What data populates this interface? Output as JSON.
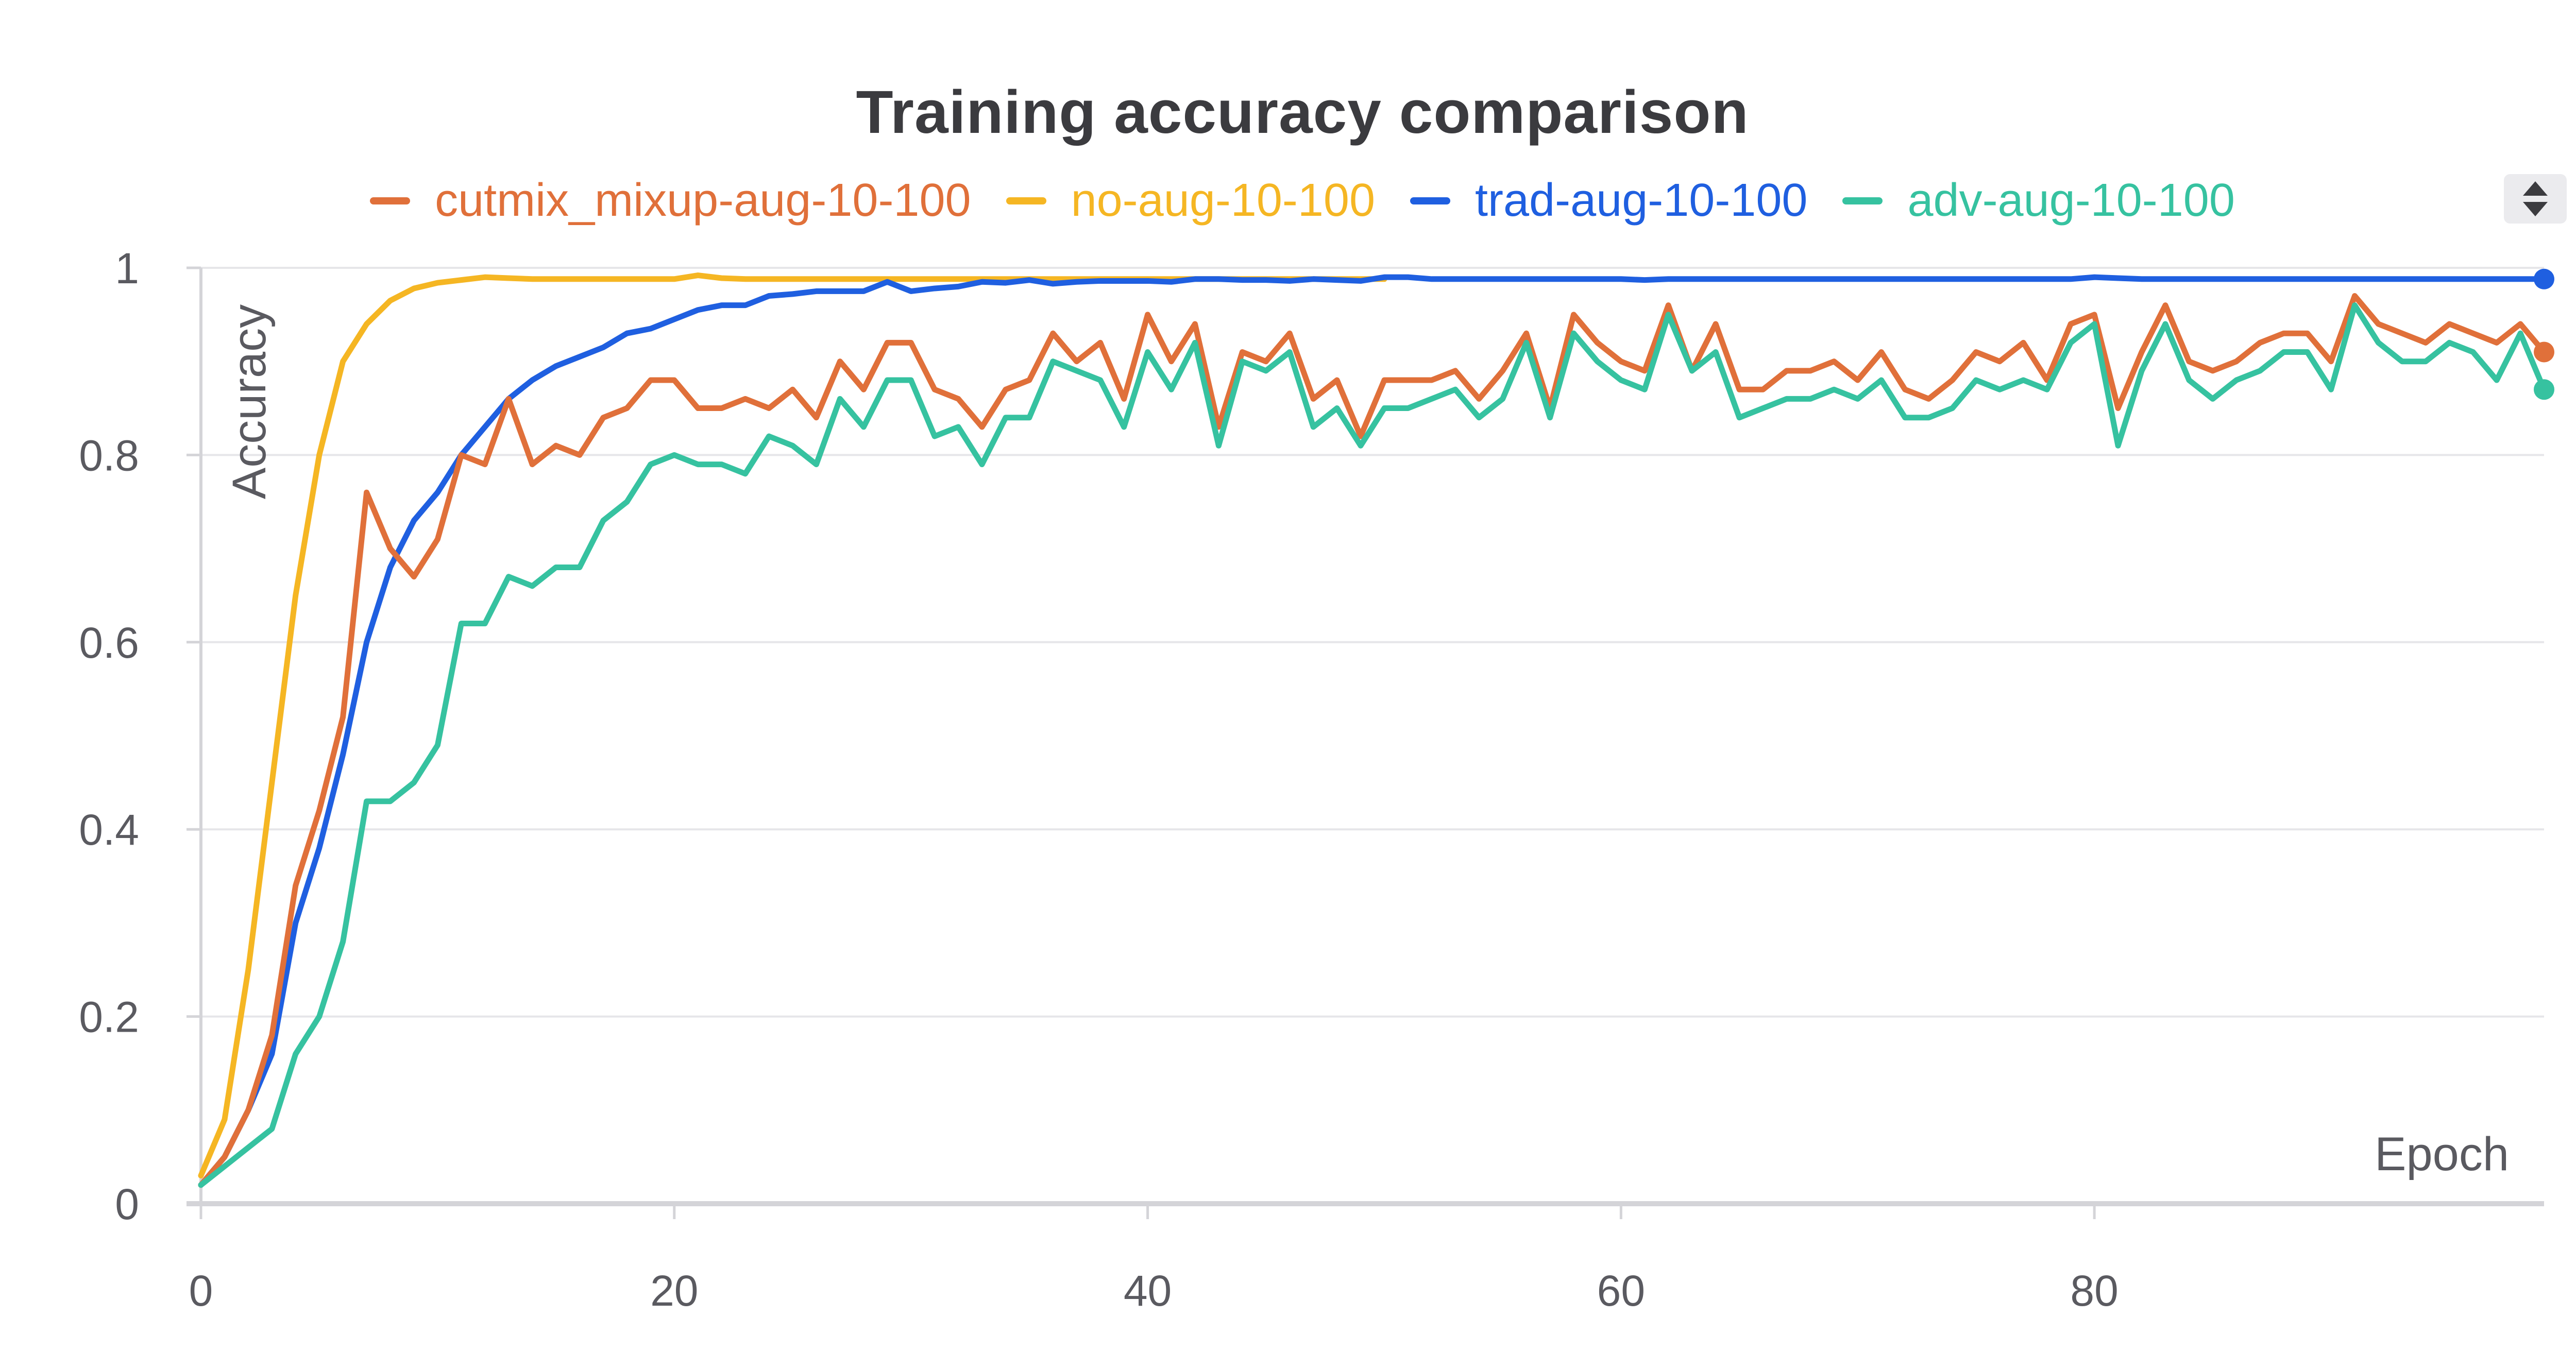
{
  "chart_data": {
    "type": "line",
    "title": "Training accuracy comparison",
    "xlabel": "Epoch",
    "ylabel": "Accuracy",
    "xlim": [
      0,
      99
    ],
    "ylim": [
      0,
      1
    ],
    "x_ticks": [
      0,
      20,
      40,
      60,
      80
    ],
    "y_ticks": [
      0,
      0.2,
      0.4,
      0.6,
      0.8,
      1
    ],
    "y_tick_labels": [
      "0",
      "0.2",
      "0.4",
      "0.6",
      "0.8",
      "1"
    ],
    "grid": "horizontal",
    "legend_position": "top-center",
    "end_markers": true,
    "series": [
      {
        "name": "cutmix_mixup-aug-10-100",
        "color": "#e0703a",
        "values": [
          0.02,
          0.05,
          0.1,
          0.18,
          0.34,
          0.42,
          0.52,
          0.76,
          0.7,
          0.67,
          0.71,
          0.8,
          0.79,
          0.86,
          0.79,
          0.81,
          0.8,
          0.84,
          0.85,
          0.88,
          0.88,
          0.85,
          0.85,
          0.86,
          0.85,
          0.87,
          0.84,
          0.9,
          0.87,
          0.92,
          0.92,
          0.87,
          0.86,
          0.83,
          0.87,
          0.88,
          0.93,
          0.9,
          0.92,
          0.86,
          0.95,
          0.9,
          0.94,
          0.83,
          0.91,
          0.9,
          0.93,
          0.86,
          0.88,
          0.82,
          0.88,
          0.88,
          0.88,
          0.89,
          0.86,
          0.89,
          0.93,
          0.85,
          0.95,
          0.92,
          0.9,
          0.89,
          0.96,
          0.89,
          0.94,
          0.87,
          0.87,
          0.89,
          0.89,
          0.9,
          0.88,
          0.91,
          0.87,
          0.86,
          0.88,
          0.91,
          0.9,
          0.92,
          0.88,
          0.94,
          0.95,
          0.85,
          0.91,
          0.96,
          0.9,
          0.89,
          0.9,
          0.92,
          0.93,
          0.93,
          0.9,
          0.97,
          0.94,
          0.93,
          0.92,
          0.94,
          0.93,
          0.92,
          0.94,
          0.91
        ]
      },
      {
        "name": "no-aug-10-100",
        "color": "#f5b623",
        "values": [
          0.03,
          0.09,
          0.25,
          0.45,
          0.65,
          0.8,
          0.9,
          0.94,
          0.965,
          0.978,
          0.984,
          0.987,
          0.99,
          0.989,
          0.988,
          0.988,
          0.988,
          0.988,
          0.988,
          0.988,
          0.988,
          0.992,
          0.989,
          0.988,
          0.988,
          0.988,
          0.988,
          0.988,
          0.988,
          0.988,
          0.988,
          0.988,
          0.988,
          0.988,
          0.988,
          0.988,
          0.988,
          0.988,
          0.988,
          0.988,
          0.988,
          0.988,
          0.988,
          0.988,
          0.988,
          0.988,
          0.988,
          0.988,
          0.988,
          0.988,
          0.988
        ]
      },
      {
        "name": "trad-aug-10-100",
        "color": "#1f5fe0",
        "values": [
          0.02,
          0.05,
          0.1,
          0.16,
          0.3,
          0.38,
          0.48,
          0.6,
          0.68,
          0.73,
          0.76,
          0.8,
          0.83,
          0.86,
          0.88,
          0.895,
          0.905,
          0.915,
          0.93,
          0.935,
          0.945,
          0.955,
          0.96,
          0.96,
          0.97,
          0.972,
          0.975,
          0.975,
          0.975,
          0.985,
          0.975,
          0.978,
          0.98,
          0.985,
          0.984,
          0.987,
          0.983,
          0.985,
          0.986,
          0.986,
          0.986,
          0.985,
          0.988,
          0.988,
          0.987,
          0.987,
          0.986,
          0.988,
          0.987,
          0.986,
          0.99,
          0.99,
          0.988,
          0.988,
          0.988,
          0.988,
          0.988,
          0.988,
          0.988,
          0.988,
          0.988,
          0.987,
          0.988,
          0.988,
          0.988,
          0.988,
          0.988,
          0.988,
          0.988,
          0.988,
          0.988,
          0.988,
          0.988,
          0.988,
          0.988,
          0.988,
          0.988,
          0.988,
          0.988,
          0.988,
          0.99,
          0.989,
          0.988,
          0.988,
          0.988,
          0.988,
          0.988,
          0.988,
          0.988,
          0.988,
          0.988,
          0.988,
          0.988,
          0.988,
          0.988,
          0.988,
          0.988,
          0.988,
          0.988,
          0.988
        ]
      },
      {
        "name": "adv-aug-10-100",
        "color": "#36c2a0",
        "values": [
          0.02,
          0.04,
          0.06,
          0.08,
          0.16,
          0.2,
          0.28,
          0.43,
          0.43,
          0.45,
          0.49,
          0.62,
          0.62,
          0.67,
          0.66,
          0.68,
          0.68,
          0.73,
          0.75,
          0.79,
          0.8,
          0.79,
          0.79,
          0.78,
          0.82,
          0.81,
          0.79,
          0.86,
          0.83,
          0.88,
          0.88,
          0.82,
          0.83,
          0.79,
          0.84,
          0.84,
          0.9,
          0.89,
          0.88,
          0.83,
          0.91,
          0.87,
          0.92,
          0.81,
          0.9,
          0.89,
          0.91,
          0.83,
          0.85,
          0.81,
          0.85,
          0.85,
          0.86,
          0.87,
          0.84,
          0.86,
          0.92,
          0.84,
          0.93,
          0.9,
          0.88,
          0.87,
          0.95,
          0.89,
          0.91,
          0.84,
          0.85,
          0.86,
          0.86,
          0.87,
          0.86,
          0.88,
          0.84,
          0.84,
          0.85,
          0.88,
          0.87,
          0.88,
          0.87,
          0.92,
          0.94,
          0.81,
          0.89,
          0.94,
          0.88,
          0.86,
          0.88,
          0.89,
          0.91,
          0.91,
          0.87,
          0.96,
          0.92,
          0.9,
          0.9,
          0.92,
          0.91,
          0.88,
          0.93,
          0.87
        ]
      }
    ]
  }
}
